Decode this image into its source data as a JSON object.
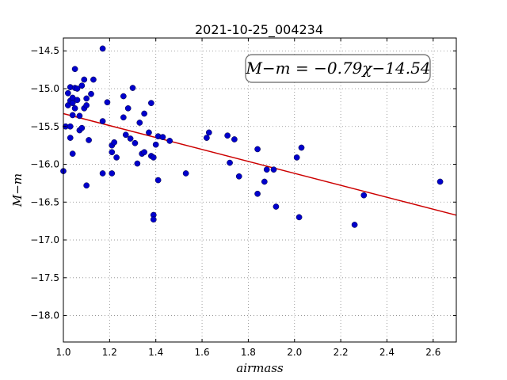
{
  "chart_data": {
    "type": "scatter",
    "title": "2021-10-25_004234",
    "xlabel": "airmass",
    "ylabel": "M−m",
    "xlim": [
      1.0,
      2.7
    ],
    "ylim": [
      -18.35,
      -14.33
    ],
    "y_inverted": true,
    "grid": true,
    "xticks": [
      1.0,
      1.2,
      1.4,
      1.6,
      1.8,
      2.0,
      2.2,
      2.4,
      2.6
    ],
    "yticks": [
      -14.5,
      -15.0,
      -15.5,
      -16.0,
      -16.5,
      -17.0,
      -17.5,
      -18.0
    ],
    "xtick_labels": [
      "1.0",
      "1.2",
      "1.4",
      "1.6",
      "1.8",
      "2.0",
      "2.2",
      "2.4",
      "2.6"
    ],
    "ytick_labels": [
      "−14.5",
      "−15.0",
      "−15.5",
      "−16.0",
      "−16.5",
      "−17.0",
      "−17.5",
      "−18.0"
    ],
    "annotation": "M−m = −0.79χ−14.54",
    "colors": {
      "points": "#0000cc",
      "fit_line": "#cc0000",
      "grid": "#888888"
    },
    "fit": {
      "slope": -0.79,
      "intercept": -14.54
    },
    "series": [
      {
        "marker": "circle",
        "points": [
          [
            1.0,
            -16.09
          ],
          [
            1.01,
            -15.5
          ],
          [
            1.02,
            -15.06
          ],
          [
            1.02,
            -15.22
          ],
          [
            1.03,
            -15.5
          ],
          [
            1.03,
            -15.65
          ],
          [
            1.03,
            -14.98
          ],
          [
            1.03,
            -15.16
          ],
          [
            1.04,
            -15.12
          ],
          [
            1.04,
            -15.35
          ],
          [
            1.04,
            -15.86
          ],
          [
            1.04,
            -15.19
          ],
          [
            1.05,
            -15.26
          ],
          [
            1.05,
            -14.99
          ],
          [
            1.05,
            -14.74
          ],
          [
            1.06,
            -15.0
          ],
          [
            1.06,
            -15.15
          ],
          [
            1.07,
            -15.36
          ],
          [
            1.07,
            -15.55
          ],
          [
            1.08,
            -14.96
          ],
          [
            1.08,
            -15.52
          ],
          [
            1.09,
            -14.88
          ],
          [
            1.09,
            -15.26
          ],
          [
            1.1,
            -16.28
          ],
          [
            1.1,
            -15.22
          ],
          [
            1.1,
            -15.13
          ],
          [
            1.11,
            -15.68
          ],
          [
            1.12,
            -15.07
          ],
          [
            1.13,
            -14.88
          ],
          [
            1.17,
            -15.43
          ],
          [
            1.17,
            -14.47
          ],
          [
            1.17,
            -16.12
          ],
          [
            1.19,
            -15.18
          ],
          [
            1.21,
            -16.12
          ],
          [
            1.21,
            -15.84
          ],
          [
            1.21,
            -15.75
          ],
          [
            1.22,
            -15.71
          ],
          [
            1.23,
            -15.91
          ],
          [
            1.26,
            -15.38
          ],
          [
            1.26,
            -15.1
          ],
          [
            1.27,
            -15.61
          ],
          [
            1.28,
            -15.26
          ],
          [
            1.29,
            -15.66
          ],
          [
            1.3,
            -14.99
          ],
          [
            1.31,
            -15.72
          ],
          [
            1.32,
            -15.99
          ],
          [
            1.33,
            -15.45
          ],
          [
            1.34,
            -15.86
          ],
          [
            1.35,
            -15.33
          ],
          [
            1.35,
            -15.84
          ],
          [
            1.37,
            -15.58
          ],
          [
            1.38,
            -15.19
          ],
          [
            1.38,
            -15.89
          ],
          [
            1.39,
            -15.91
          ],
          [
            1.39,
            -16.67
          ],
          [
            1.39,
            -16.73
          ],
          [
            1.4,
            -15.74
          ],
          [
            1.41,
            -16.21
          ],
          [
            1.41,
            -15.63
          ],
          [
            1.43,
            -15.64
          ],
          [
            1.46,
            -15.69
          ],
          [
            1.53,
            -16.12
          ],
          [
            1.62,
            -15.65
          ],
          [
            1.63,
            -15.58
          ],
          [
            1.71,
            -15.62
          ],
          [
            1.72,
            -15.98
          ],
          [
            1.74,
            -15.67
          ],
          [
            1.76,
            -16.16
          ],
          [
            1.84,
            -15.8
          ],
          [
            1.84,
            -16.39
          ],
          [
            1.87,
            -16.23
          ],
          [
            1.88,
            -16.07
          ],
          [
            1.91,
            -16.07
          ],
          [
            1.92,
            -16.56
          ],
          [
            2.01,
            -15.91
          ],
          [
            2.02,
            -16.7
          ],
          [
            2.03,
            -15.78
          ],
          [
            2.26,
            -16.8
          ],
          [
            2.3,
            -16.41
          ],
          [
            2.63,
            -16.23
          ]
        ]
      }
    ]
  }
}
